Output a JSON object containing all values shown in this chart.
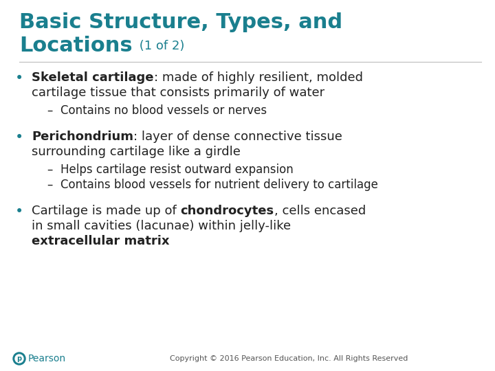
{
  "bg_color": "#ffffff",
  "title_color": "#1a7f8e",
  "title_line1": "Basic Structure, Types, and",
  "title_line2": "Locations",
  "title_suffix": " (1 of 2)",
  "title_fontsize": 22,
  "title_suffix_fontsize": 13,
  "body_color": "#222222",
  "bullet_color": "#1a7f8e",
  "body_fontsize": 13,
  "sub_fontsize": 12,
  "copyright_text": "Copyright © 2016 Pearson Education, Inc. All Rights Reserved",
  "copyright_fontsize": 8,
  "pearson_text": "Pearson",
  "pearson_color": "#1a7f8e",
  "pearson_fontsize": 10,
  "fig_width": 7.2,
  "fig_height": 5.4,
  "dpi": 100
}
